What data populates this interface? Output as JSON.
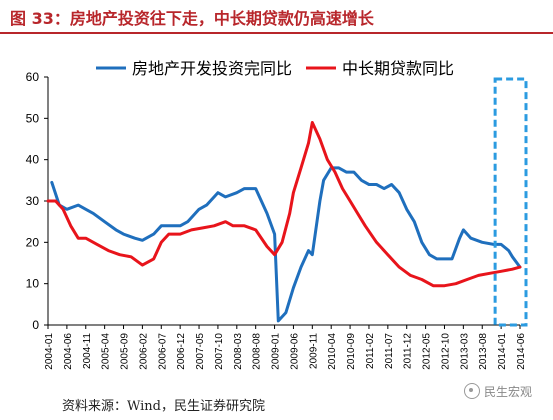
{
  "header": {
    "title": "图 33：房地产投资往下走，中长期贷款仍高速增长"
  },
  "footer": {
    "source": "资料来源：Wind，民生证券研究院",
    "watermark": "民生宏观"
  },
  "colors": {
    "accent": "#b8262b",
    "series_blue": "#1f6fbd",
    "series_red": "#e8141b",
    "highlight": "#2b9be0"
  },
  "chart_data": {
    "type": "line",
    "title": "",
    "xlabel": "",
    "ylabel": "",
    "ylim": [
      0,
      60
    ],
    "yticks": [
      0,
      10,
      20,
      30,
      40,
      50,
      60
    ],
    "grid": false,
    "legend": "top",
    "xticks": [
      "2004-01",
      "2004-06",
      "2004-11",
      "2005-04",
      "2005-09",
      "2006-02",
      "2006-07",
      "2006-12",
      "2007-05",
      "2007-10",
      "2008-03",
      "2008-08",
      "2009-01",
      "2009-06",
      "2009-11",
      "2010-04",
      "2010-09",
      "2011-02",
      "2011-07",
      "2011-12",
      "2012-05",
      "2012-10",
      "2013-03",
      "2013-08",
      "2014-01",
      "2014-06"
    ],
    "highlight": {
      "from": "2014-01",
      "to": "2014-06"
    },
    "series": [
      {
        "name": "房地产开发投资完同比",
        "points": [
          [
            "2004-02",
            34.5
          ],
          [
            "2004-04",
            29
          ],
          [
            "2004-06",
            28
          ],
          [
            "2004-09",
            29
          ],
          [
            "2004-11",
            28
          ],
          [
            "2005-01",
            27
          ],
          [
            "2005-04",
            25
          ],
          [
            "2005-07",
            23
          ],
          [
            "2005-09",
            22
          ],
          [
            "2005-12",
            21
          ],
          [
            "2006-02",
            20.5
          ],
          [
            "2006-05",
            22
          ],
          [
            "2006-07",
            24
          ],
          [
            "2006-09",
            24
          ],
          [
            "2006-12",
            24
          ],
          [
            "2007-02",
            25
          ],
          [
            "2007-05",
            28
          ],
          [
            "2007-07",
            29
          ],
          [
            "2007-10",
            32
          ],
          [
            "2007-12",
            31
          ],
          [
            "2008-03",
            32
          ],
          [
            "2008-05",
            33
          ],
          [
            "2008-08",
            33
          ],
          [
            "2008-11",
            27
          ],
          [
            "2009-01",
            22
          ],
          [
            "2009-02",
            1
          ],
          [
            "2009-04",
            3
          ],
          [
            "2009-06",
            9
          ],
          [
            "2009-08",
            14
          ],
          [
            "2009-10",
            18
          ],
          [
            "2009-11",
            17
          ],
          [
            "2010-01",
            30
          ],
          [
            "2010-02",
            35
          ],
          [
            "2010-04",
            38
          ],
          [
            "2010-06",
            38
          ],
          [
            "2010-08",
            37
          ],
          [
            "2010-10",
            37
          ],
          [
            "2010-12",
            35
          ],
          [
            "2011-02",
            34
          ],
          [
            "2011-04",
            34
          ],
          [
            "2011-06",
            33
          ],
          [
            "2011-08",
            34
          ],
          [
            "2011-10",
            32
          ],
          [
            "2011-12",
            28
          ],
          [
            "2012-02",
            25
          ],
          [
            "2012-04",
            20
          ],
          [
            "2012-06",
            17
          ],
          [
            "2012-08",
            16
          ],
          [
            "2012-10",
            16
          ],
          [
            "2012-12",
            16
          ],
          [
            "2013-02",
            21
          ],
          [
            "2013-03",
            23
          ],
          [
            "2013-05",
            21
          ],
          [
            "2013-08",
            20
          ],
          [
            "2013-11",
            19.5
          ],
          [
            "2014-01",
            19.5
          ],
          [
            "2014-03",
            18
          ],
          [
            "2014-04",
            16.5
          ],
          [
            "2014-06",
            14
          ]
        ]
      },
      {
        "name": "中长期贷款同比",
        "points": [
          [
            "2004-01",
            30
          ],
          [
            "2004-03",
            30
          ],
          [
            "2004-05",
            28
          ],
          [
            "2004-07",
            24
          ],
          [
            "2004-09",
            21
          ],
          [
            "2004-11",
            21
          ],
          [
            "2005-02",
            19.5
          ],
          [
            "2005-05",
            18
          ],
          [
            "2005-08",
            17
          ],
          [
            "2005-11",
            16.5
          ],
          [
            "2006-02",
            14.5
          ],
          [
            "2006-05",
            16
          ],
          [
            "2006-07",
            20
          ],
          [
            "2006-09",
            22
          ],
          [
            "2006-12",
            22
          ],
          [
            "2007-03",
            23
          ],
          [
            "2007-06",
            23.5
          ],
          [
            "2007-09",
            24
          ],
          [
            "2007-12",
            25
          ],
          [
            "2008-02",
            24
          ],
          [
            "2008-05",
            24
          ],
          [
            "2008-08",
            23
          ],
          [
            "2008-11",
            19
          ],
          [
            "2009-01",
            17
          ],
          [
            "2009-03",
            20
          ],
          [
            "2009-05",
            27
          ],
          [
            "2009-06",
            32
          ],
          [
            "2009-08",
            38
          ],
          [
            "2009-10",
            44
          ],
          [
            "2009-11",
            49
          ],
          [
            "2010-01",
            45
          ],
          [
            "2010-03",
            40
          ],
          [
            "2010-05",
            37
          ],
          [
            "2010-07",
            33
          ],
          [
            "2010-09",
            30
          ],
          [
            "2010-11",
            27
          ],
          [
            "2011-01",
            24
          ],
          [
            "2011-04",
            20
          ],
          [
            "2011-07",
            17
          ],
          [
            "2011-10",
            14
          ],
          [
            "2012-01",
            12
          ],
          [
            "2012-04",
            11
          ],
          [
            "2012-07",
            9.5
          ],
          [
            "2012-10",
            9.5
          ],
          [
            "2013-01",
            10
          ],
          [
            "2013-04",
            11
          ],
          [
            "2013-07",
            12
          ],
          [
            "2013-10",
            12.5
          ],
          [
            "2014-01",
            13
          ],
          [
            "2014-04",
            13.5
          ],
          [
            "2014-06",
            14
          ]
        ]
      }
    ]
  }
}
